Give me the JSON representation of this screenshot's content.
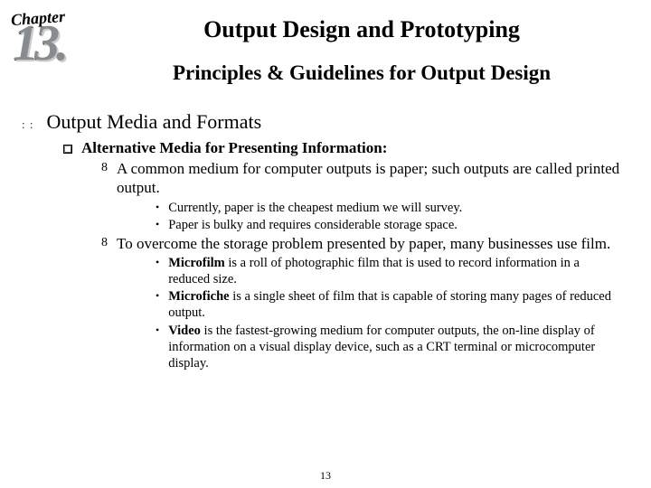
{
  "chapter": {
    "label": "Chapter",
    "number": "13."
  },
  "title": "Output Design and Prototyping",
  "subtitle": "Principles & Guidelines for Output Design",
  "l1_heading": "Output Media and Formats",
  "l2_heading": "Alternative Media for Presenting Information:",
  "l3_a": "A common medium for computer outputs is paper; such outputs are called printed output.",
  "l4_a1": "Currently, paper is the cheapest medium we will survey.",
  "l4_a2": "Paper is bulky and requires considerable storage space.",
  "l3_b": "To overcome the storage problem presented by paper, many businesses use film.",
  "l4_b1_bold": "Microfilm",
  "l4_b1_rest": " is a roll of photographic film that is used to record information in a reduced size.",
  "l4_b2_bold": "Microfiche",
  "l4_b2_rest": " is a single sheet of film that is capable of storing many pages of reduced output.",
  "l4_b3_bold": "Video",
  "l4_b3_rest": " is the fastest-growing medium for computer outputs, the on-line display of information on a visual display device, such as a CRT terminal or microcomputer display.",
  "page_number": "13",
  "bullets": {
    "l3": "8",
    "l4": "•"
  }
}
